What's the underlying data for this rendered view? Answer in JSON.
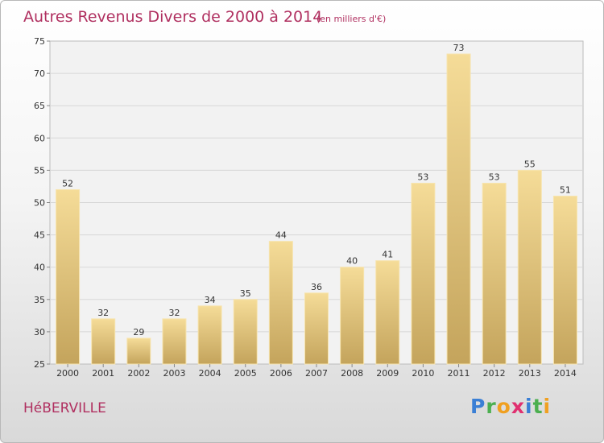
{
  "header": {
    "title": "Autres Revenus Divers de 2000 à 2014",
    "subtitle": "(en milliers d'€)"
  },
  "footer": {
    "commune": "HéBERVILLE",
    "logo_text": "Proxiti"
  },
  "colors": {
    "bar_light": "#f5dc98",
    "bar_dark": "#c4a45c",
    "title": "#b03060",
    "grid": "#d7d7d7"
  },
  "chart_data": {
    "type": "bar",
    "title": "Autres Revenus Divers de 2000 à 2014",
    "subtitle": "(en milliers d'€)",
    "xlabel": "",
    "ylabel": "",
    "categories": [
      "2000",
      "2001",
      "2002",
      "2003",
      "2004",
      "2005",
      "2006",
      "2007",
      "2008",
      "2009",
      "2010",
      "2011",
      "2012",
      "2013",
      "2014"
    ],
    "values": [
      52,
      32,
      29,
      32,
      34,
      35,
      44,
      36,
      40,
      41,
      53,
      73,
      53,
      55,
      51
    ],
    "ylim": [
      25,
      75
    ],
    "yticks": [
      25,
      30,
      35,
      40,
      45,
      50,
      55,
      60,
      65,
      70,
      75
    ],
    "grid": true,
    "legend": "none"
  }
}
